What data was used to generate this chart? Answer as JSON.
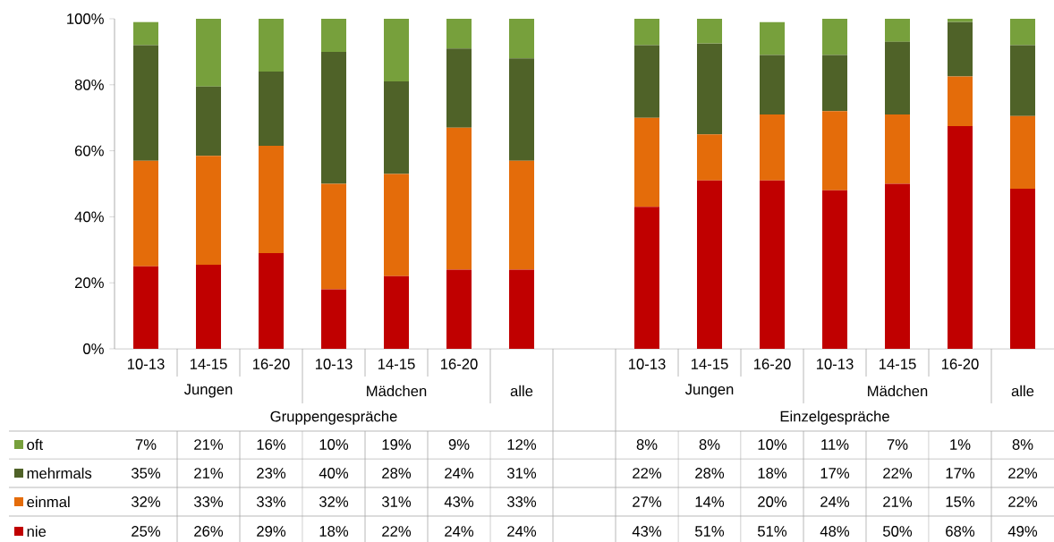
{
  "chart_data": {
    "type": "bar",
    "stacked": true,
    "categories": [
      "10-13",
      "14-15",
      "16-20",
      "10-13",
      "14-15",
      "16-20",
      null,
      null,
      "10-13",
      "14-15",
      "16-20",
      "10-13",
      "14-15",
      "16-20",
      null
    ],
    "annotations": [
      "Jungen",
      "Mädchen",
      "alle",
      "Gruppengespräche",
      "Jungen",
      "Mädchen",
      "alle",
      "Einzelgespräche"
    ],
    "series": [
      {
        "name": "nie",
        "color": "#c00000",
        "values": [
          25,
          25.5,
          29,
          18,
          22,
          24,
          24,
          null,
          43,
          51,
          51,
          48,
          50,
          67.5,
          48.5
        ],
        "value_labels": [
          "25%",
          "26%",
          "29%",
          "18%",
          "22%",
          "24%",
          "24%",
          null,
          "43%",
          "51%",
          "51%",
          "48%",
          "50%",
          "68%",
          "49%"
        ]
      },
      {
        "name": "einmal",
        "color": "#e46c0a",
        "values": [
          32,
          33,
          32.5,
          32,
          31,
          43,
          33,
          null,
          27,
          14,
          20,
          24,
          21,
          15,
          22
        ],
        "value_labels": [
          "32%",
          "33%",
          "33%",
          "32%",
          "31%",
          "43%",
          "33%",
          null,
          "27%",
          "14%",
          "20%",
          "24%",
          "21%",
          "15%",
          "22%"
        ]
      },
      {
        "name": "mehrmals",
        "color": "#4f6228",
        "values": [
          35,
          21,
          22.5,
          40,
          28,
          24,
          31,
          null,
          22,
          27.5,
          18,
          17,
          22,
          16.5,
          21.5
        ],
        "value_labels": [
          "35%",
          "21%",
          "23%",
          "40%",
          "28%",
          "24%",
          "31%",
          null,
          "22%",
          "28%",
          "18%",
          "17%",
          "22%",
          "17%",
          "22%"
        ]
      },
      {
        "name": "oft",
        "color": "#77a03c",
        "values": [
          7,
          20.5,
          16,
          10,
          19,
          9,
          12,
          null,
          8,
          7.5,
          10,
          11,
          7,
          1,
          8
        ],
        "value_labels": [
          "7%",
          "21%",
          "16%",
          "10%",
          "19%",
          "9%",
          "12%",
          null,
          "8%",
          "8%",
          "10%",
          "11%",
          "7%",
          "1%",
          "8%"
        ]
      }
    ],
    "ylim": [
      0,
      100
    ],
    "yticks": [
      {
        "value": 0,
        "label": "0%"
      },
      {
        "value": 20,
        "label": "20%"
      },
      {
        "value": 40,
        "label": "40%"
      },
      {
        "value": 60,
        "label": "60%"
      },
      {
        "value": 80,
        "label": "80%"
      },
      {
        "value": 100,
        "label": "100%"
      }
    ],
    "legend": "bottom",
    "grid": false
  }
}
